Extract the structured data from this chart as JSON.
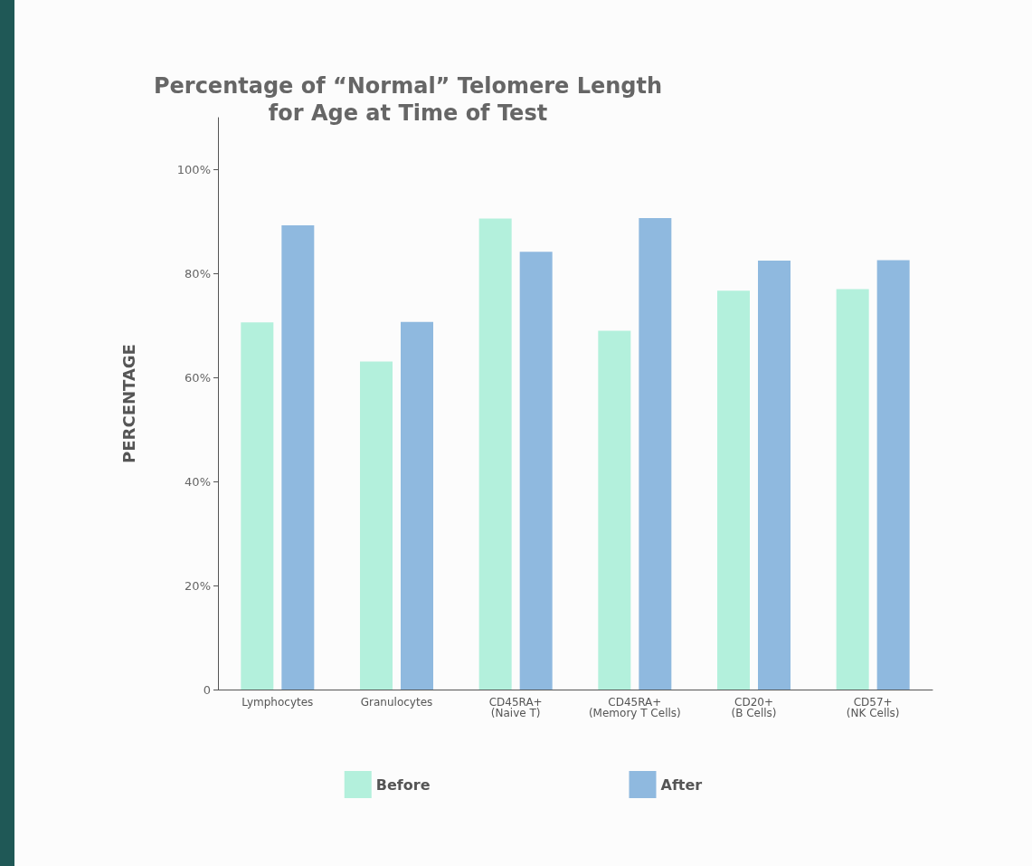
{
  "chart_data": {
    "type": "bar",
    "title": "Percentage of “Normal” Telomere Length\nfor Age at Time of Test",
    "ylabel": "PERCENTAGE",
    "categories": [
      "Lymphocytes",
      "Granulocytes",
      "CD45RA+\n(Naive T)",
      "CD45RA+\n(Memory T Cells)",
      "CD20+\n(B Cells)",
      "CD57+\n(NK Cells)"
    ],
    "series": [
      {
        "name": "Before",
        "color": "#b3f0dc",
        "values": [
          70.6,
          63.1,
          90.6,
          69,
          76.7,
          77
        ]
      },
      {
        "name": "After",
        "color": "#8fb9df",
        "values": [
          89.3,
          70.7,
          84.2,
          90.7,
          82.5,
          82.6
        ]
      }
    ],
    "ylim": [
      0,
      110
    ],
    "yticks": [
      0,
      {
        "value": 20,
        "label": "20%"
      },
      {
        "value": 40,
        "label": "40%"
      },
      {
        "value": 60,
        "label": "60%"
      },
      {
        "value": 80,
        "label": "80%"
      },
      {
        "value": 100,
        "label": "100%"
      }
    ],
    "grid": false,
    "legend": "bottom"
  }
}
